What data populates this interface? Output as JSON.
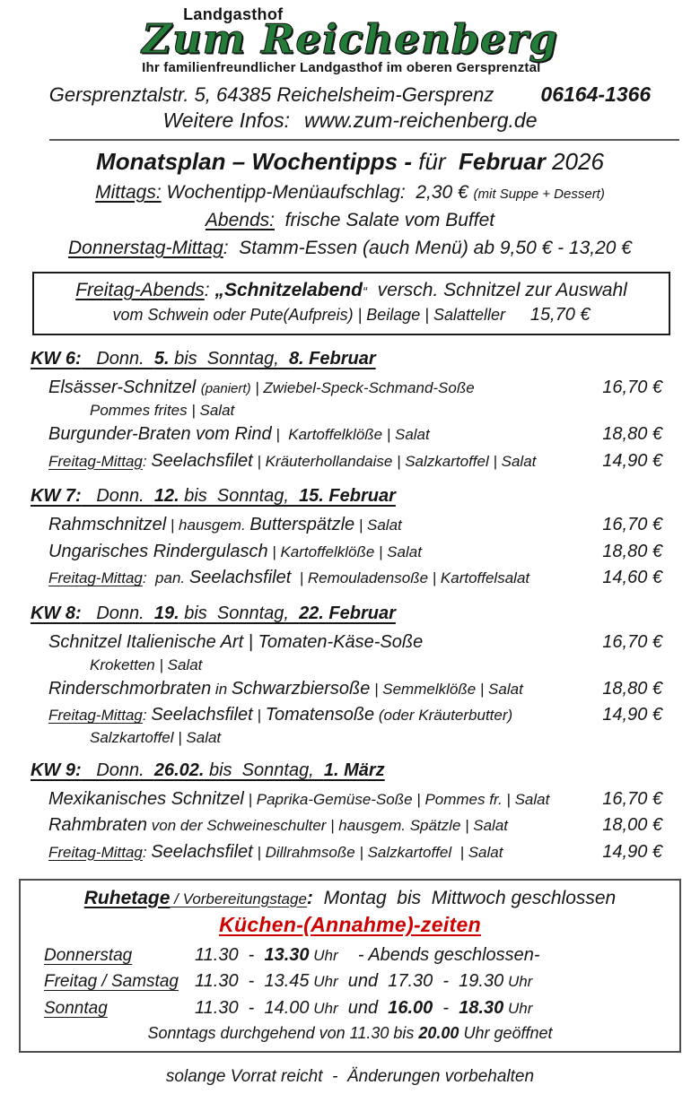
{
  "logo": {
    "top": "Landgasthof",
    "name": "Zum Reichenberg",
    "tagline": "Ihr familienfreundlicher Landgasthof im oberen Gersprenztal",
    "green": "#237c38"
  },
  "header": {
    "address": "Gersprenztalstr. 5, 64385 Reichelsheim-Gersprenz",
    "phone": "06164-1366",
    "info_label": "Weitere Infos:",
    "website": "www.zum-reichenberg.de"
  },
  "title_segs": [
    {
      "t": "Monatsplan – Wochentipps - ",
      "c": "b"
    },
    {
      "t": "für  ",
      "c": ""
    },
    {
      "t": "Februar",
      "c": "b"
    },
    {
      "t": " 2026",
      "c": ""
    }
  ],
  "intro": {
    "line1": [
      {
        "t": "Mittags:",
        "c": "u"
      },
      {
        "t": " Wochentipp-Menüaufschlag:  2,30 € ",
        "c": ""
      },
      {
        "t": "(mit Suppe + Dessert)",
        "c": "sm"
      }
    ],
    "line2": [
      {
        "t": "Abends:",
        "c": "u"
      },
      {
        "t": "  frische Salate vom Buffet",
        "c": ""
      }
    ],
    "line3": [
      {
        "t": "Donnerstag-Mittag",
        "c": "u"
      },
      {
        "t": ":  Stamm-Essen (auch Menü) ab 9,50 € - 13,20 €",
        "c": ""
      }
    ]
  },
  "schnitzel_box": {
    "line1": [
      {
        "t": "Freitag-Abends",
        "c": "u"
      },
      {
        "t": ": ",
        "c": ""
      },
      {
        "t": "„Schnitzelabend",
        "c": "b"
      },
      {
        "t": "“",
        "c": "sm"
      },
      {
        "t": "  versch. Schnitzel zur Auswahl",
        "c": ""
      }
    ],
    "line2": [
      {
        "t": "vom Schwein oder Pute(Aufpreis) | Beilage | Salatteller",
        "c": ""
      },
      {
        "t": "     15,70 €",
        "c": "lg"
      }
    ]
  },
  "weeks": [
    {
      "heading": [
        {
          "t": "KW 6:",
          "c": "b"
        },
        {
          "t": "   Donn.  ",
          "c": ""
        },
        {
          "t": "5.",
          "c": "b"
        },
        {
          "t": " bis  Sonntag,  ",
          "c": ""
        },
        {
          "t": "8. Februar",
          "c": "b"
        }
      ],
      "items": [
        {
          "segs": [
            {
              "t": "Elsässer-Schnitzel ",
              "c": "lg"
            },
            {
              "t": "(paniert)",
              "c": "sm"
            },
            {
              "t": " | Zwiebel-Speck-Schmand-Soße",
              "c": "md"
            }
          ],
          "price": "16,70 €",
          "line2": "Pommes frites | Salat"
        },
        {
          "segs": [
            {
              "t": "Burgunder-Braten vom Rind",
              "c": "lg"
            },
            {
              "t": " |  Kartoffelklöße | Salat",
              "c": "md"
            }
          ],
          "price": "18,80 €"
        },
        {
          "segs": [
            {
              "t": "Freitag-Mittag",
              "c": "md u"
            },
            {
              "t": ": ",
              "c": "md"
            },
            {
              "t": "Seelachsfilet",
              "c": "lg"
            },
            {
              "t": " | Kräuterhollandaise | Salzkartoffel | Salat",
              "c": "md"
            }
          ],
          "price": "14,90 €"
        }
      ]
    },
    {
      "heading": [
        {
          "t": "KW 7:",
          "c": "b"
        },
        {
          "t": "   Donn.  ",
          "c": ""
        },
        {
          "t": "12.",
          "c": "b"
        },
        {
          "t": " bis  Sonntag,  ",
          "c": ""
        },
        {
          "t": "15. Februar",
          "c": "b"
        }
      ],
      "items": [
        {
          "segs": [
            {
              "t": "Rahmschnitzel",
              "c": "lg"
            },
            {
              "t": " | hausgem. ",
              "c": "md"
            },
            {
              "t": "Butterspätzle",
              "c": "lg"
            },
            {
              "t": " | Salat",
              "c": "md"
            }
          ],
          "price": "16,70 €"
        },
        {
          "segs": [
            {
              "t": "Ungarisches Rindergulasch",
              "c": "lg"
            },
            {
              "t": " | Kartoffelklöße | Salat",
              "c": "md"
            }
          ],
          "price": "18,80 €"
        },
        {
          "segs": [
            {
              "t": "Freitag-Mittag",
              "c": "md u"
            },
            {
              "t": ":  pan. ",
              "c": "md"
            },
            {
              "t": "Seelachsfilet",
              "c": "lg"
            },
            {
              "t": "  | Remouladensoße | Kartoffelsalat",
              "c": "md"
            }
          ],
          "price": "14,60 €"
        }
      ]
    },
    {
      "heading": [
        {
          "t": "KW 8:",
          "c": "b"
        },
        {
          "t": "   Donn.  ",
          "c": ""
        },
        {
          "t": "19.",
          "c": "b"
        },
        {
          "t": " bis  Sonntag,  ",
          "c": ""
        },
        {
          "t": "22. Februar",
          "c": "b"
        }
      ],
      "items": [
        {
          "segs": [
            {
              "t": "Schnitzel Italienische Art | Tomaten-Käse-Soße",
              "c": "lg"
            }
          ],
          "price": "16,70 €",
          "line2": "Kroketten | Salat"
        },
        {
          "segs": [
            {
              "t": "Rinderschmorbraten",
              "c": "lg"
            },
            {
              "t": " in ",
              "c": "md"
            },
            {
              "t": "Schwarzbiersoße",
              "c": "lg"
            },
            {
              "t": " | Semmelklöße | Salat",
              "c": "md"
            }
          ],
          "price": "18,80 €"
        },
        {
          "segs": [
            {
              "t": "Freitag-Mittag",
              "c": "md u"
            },
            {
              "t": ": ",
              "c": "md"
            },
            {
              "t": "Seelachsfilet",
              "c": "lg"
            },
            {
              "t": " | ",
              "c": "md"
            },
            {
              "t": "Tomatensoße",
              "c": "lg"
            },
            {
              "t": " (oder Kräuterbutter)",
              "c": "md"
            }
          ],
          "price": "14,90 €",
          "line2": "Salzkartoffel | Salat"
        }
      ]
    },
    {
      "heading": [
        {
          "t": "KW 9:",
          "c": "b"
        },
        {
          "t": "   Donn.  ",
          "c": ""
        },
        {
          "t": "26.02.",
          "c": "b"
        },
        {
          "t": " bis  Sonntag,  ",
          "c": ""
        },
        {
          "t": "1. März",
          "c": "b"
        }
      ],
      "items": [
        {
          "segs": [
            {
              "t": "Mexikanisches Schnitzel",
              "c": "lg"
            },
            {
              "t": " | Paprika-Gemüse-Soße | Pommes fr. | Salat",
              "c": "md"
            }
          ],
          "price": "16,70 €"
        },
        {
          "segs": [
            {
              "t": "Rahmbraten",
              "c": "lg"
            },
            {
              "t": " von der Schweineschulter | hausgem. Spätzle | Salat",
              "c": "md"
            }
          ],
          "price": "18,00 €"
        },
        {
          "segs": [
            {
              "t": "Freitag-Mittag",
              "c": "md u"
            },
            {
              "t": ": ",
              "c": "md"
            },
            {
              "t": "Seelachsfilet",
              "c": "lg"
            },
            {
              "t": " | Dillrahmsoße | Salzkartoffel  | Salat",
              "c": "md"
            }
          ],
          "price": "14,90 €"
        }
      ]
    }
  ],
  "hours": {
    "intro": [
      {
        "t": "Ruhetage",
        "c": "b u"
      },
      {
        "t": " / Vorbereitungstage",
        "c": "md u"
      },
      {
        "t": ":",
        "c": "b"
      },
      {
        "t": "  Montag  bis  Mittwoch geschlossen",
        "c": ""
      }
    ],
    "kitchen_title": "Küchen-(Annahme)-zeiten",
    "red": "#cc0000",
    "rows": [
      {
        "day": "Donnerstag",
        "segs": [
          {
            "t": "11.30  -  ",
            "c": ""
          },
          {
            "t": "13.30",
            "c": "b"
          },
          {
            "t": " Uhr",
            "c": "md"
          },
          {
            "t": "    - Abends geschlossen-",
            "c": ""
          }
        ]
      },
      {
        "day": "Freitag / Samstag",
        "segs": [
          {
            "t": "11.30  -  13.45",
            "c": ""
          },
          {
            "t": " Uhr",
            "c": "md"
          },
          {
            "t": "  und  17.30  -  19.30",
            "c": ""
          },
          {
            "t": " Uhr",
            "c": "md"
          }
        ]
      },
      {
        "day": "Sonntag",
        "segs": [
          {
            "t": "11.30  -  14.00",
            "c": ""
          },
          {
            "t": " Uhr",
            "c": "md"
          },
          {
            "t": "  und  ",
            "c": ""
          },
          {
            "t": "16.00",
            "c": "b"
          },
          {
            "t": "  -  ",
            "c": ""
          },
          {
            "t": "18.30",
            "c": "b"
          },
          {
            "t": " Uhr",
            "c": "md"
          }
        ]
      }
    ],
    "note": [
      {
        "t": "Sonntags durchgehend von 11.30 bis ",
        "c": ""
      },
      {
        "t": "20.00",
        "c": "b"
      },
      {
        "t": " Uhr geöffnet",
        "c": ""
      }
    ]
  },
  "footer": "solange Vorrat reicht  -  Änderungen vorbehalten"
}
